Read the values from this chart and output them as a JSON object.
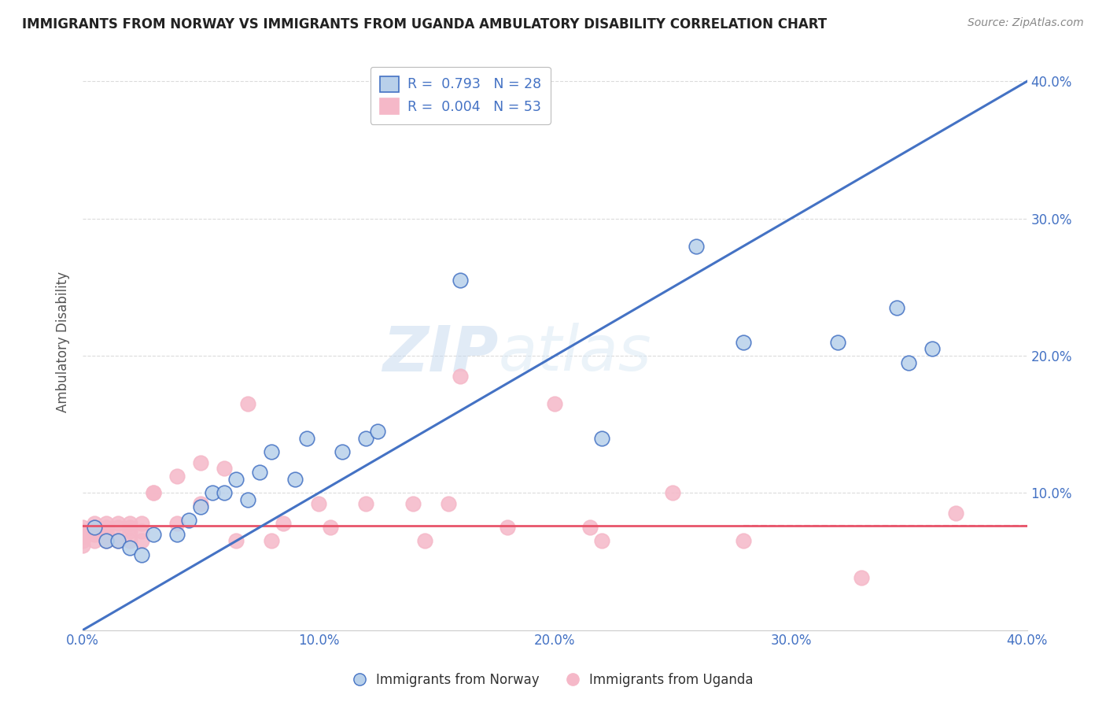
{
  "title": "IMMIGRANTS FROM NORWAY VS IMMIGRANTS FROM UGANDA AMBULATORY DISABILITY CORRELATION CHART",
  "source": "Source: ZipAtlas.com",
  "ylabel": "Ambulatory Disability",
  "xlim": [
    0.0,
    0.4
  ],
  "ylim": [
    0.0,
    0.42
  ],
  "xticks": [
    0.0,
    0.1,
    0.2,
    0.3,
    0.4
  ],
  "yticks": [
    0.1,
    0.2,
    0.3,
    0.4
  ],
  "xticklabels": [
    "0.0%",
    "10.0%",
    "20.0%",
    "30.0%",
    "40.0%"
  ],
  "yticklabels_right": [
    "10.0%",
    "20.0%",
    "30.0%",
    "40.0%"
  ],
  "legend_norway": "Immigrants from Norway",
  "legend_uganda": "Immigrants from Uganda",
  "R_norway": "0.793",
  "N_norway": "28",
  "R_uganda": "0.004",
  "N_uganda": "53",
  "norway_color": "#b8d0ea",
  "norway_edge_color": "#4472c4",
  "uganda_color": "#f5b8c8",
  "uganda_edge_color": "#f5b8c8",
  "norway_line_color": "#4472c4",
  "uganda_line_color": "#e8546a",
  "tick_color": "#4472c4",
  "norway_scatter_x": [
    0.005,
    0.01,
    0.015,
    0.02,
    0.025,
    0.03,
    0.04,
    0.045,
    0.05,
    0.055,
    0.06,
    0.065,
    0.07,
    0.075,
    0.08,
    0.09,
    0.095,
    0.11,
    0.12,
    0.125,
    0.16,
    0.22,
    0.26,
    0.28,
    0.32,
    0.345,
    0.35,
    0.36
  ],
  "norway_scatter_y": [
    0.075,
    0.065,
    0.065,
    0.06,
    0.055,
    0.07,
    0.07,
    0.08,
    0.09,
    0.1,
    0.1,
    0.11,
    0.095,
    0.115,
    0.13,
    0.11,
    0.14,
    0.13,
    0.14,
    0.145,
    0.255,
    0.14,
    0.28,
    0.21,
    0.21,
    0.235,
    0.195,
    0.205
  ],
  "uganda_scatter_x": [
    0.0,
    0.0,
    0.0,
    0.0,
    0.0,
    0.0,
    0.005,
    0.005,
    0.005,
    0.005,
    0.005,
    0.01,
    0.01,
    0.01,
    0.01,
    0.01,
    0.01,
    0.015,
    0.015,
    0.015,
    0.02,
    0.02,
    0.02,
    0.02,
    0.025,
    0.025,
    0.025,
    0.03,
    0.03,
    0.04,
    0.04,
    0.05,
    0.05,
    0.06,
    0.065,
    0.07,
    0.08,
    0.085,
    0.1,
    0.105,
    0.12,
    0.14,
    0.145,
    0.155,
    0.16,
    0.18,
    0.2,
    0.215,
    0.22,
    0.25,
    0.28,
    0.33,
    0.37
  ],
  "uganda_scatter_y": [
    0.075,
    0.072,
    0.07,
    0.068,
    0.065,
    0.062,
    0.078,
    0.075,
    0.072,
    0.07,
    0.065,
    0.078,
    0.075,
    0.072,
    0.07,
    0.068,
    0.065,
    0.078,
    0.075,
    0.065,
    0.078,
    0.075,
    0.072,
    0.065,
    0.078,
    0.072,
    0.065,
    0.1,
    0.1,
    0.112,
    0.078,
    0.092,
    0.122,
    0.118,
    0.065,
    0.165,
    0.065,
    0.078,
    0.092,
    0.075,
    0.092,
    0.092,
    0.065,
    0.092,
    0.185,
    0.075,
    0.165,
    0.075,
    0.065,
    0.1,
    0.065,
    0.038,
    0.085
  ],
  "norway_line_x0": 0.0,
  "norway_line_x1": 0.4,
  "norway_line_y0": 0.0,
  "norway_line_y1": 0.4,
  "uganda_line_x0": 0.0,
  "uganda_line_x1": 0.4,
  "uganda_line_y0": 0.076,
  "uganda_line_y1": 0.076,
  "watermark_zip": "ZIP",
  "watermark_atlas": "atlas",
  "background_color": "#ffffff",
  "grid_color": "#cccccc"
}
